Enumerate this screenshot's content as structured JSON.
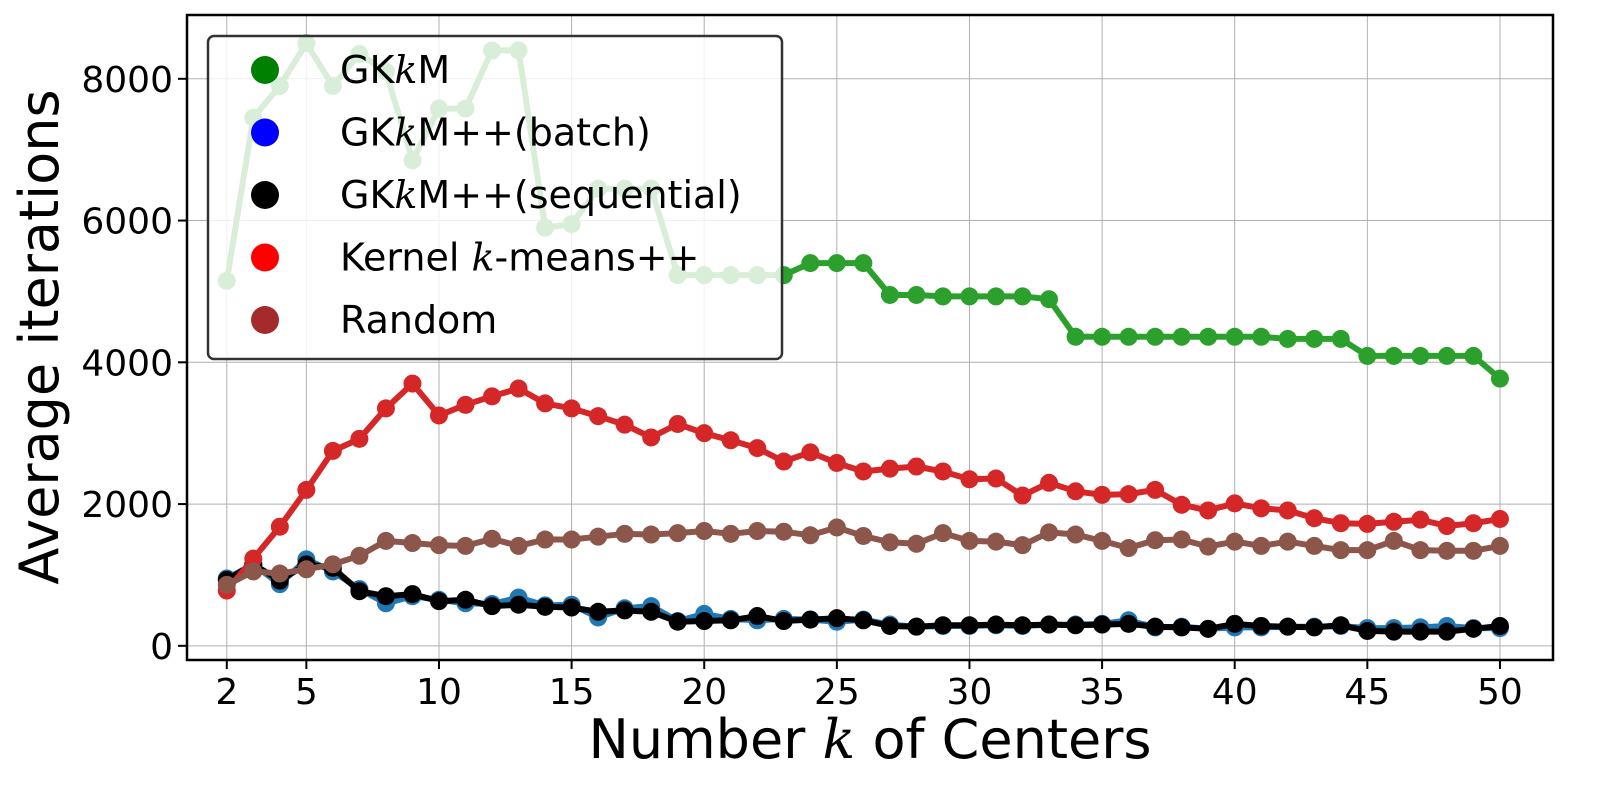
{
  "chart_data": {
    "type": "line",
    "xlabel": "Number k of Centers",
    "ylabel": "Average iterations",
    "xlim": [
      0.5,
      52
    ],
    "ylim": [
      -200,
      8900
    ],
    "xticks": [
      2,
      5,
      10,
      15,
      20,
      25,
      30,
      35,
      40,
      45,
      50
    ],
    "yticks": [
      0,
      2000,
      4000,
      6000,
      8000
    ],
    "grid": true,
    "legend_position": "top-left",
    "x": [
      2,
      3,
      4,
      5,
      6,
      7,
      8,
      9,
      10,
      11,
      12,
      13,
      14,
      15,
      16,
      17,
      18,
      19,
      20,
      21,
      22,
      23,
      24,
      25,
      26,
      27,
      28,
      29,
      30,
      31,
      32,
      33,
      34,
      35,
      36,
      37,
      38,
      39,
      40,
      41,
      42,
      43,
      44,
      45,
      46,
      47,
      48,
      49,
      50
    ],
    "series": [
      {
        "name": "GKkM",
        "color": "#2ca02c",
        "legend_color": "#008000",
        "values": [
          5150,
          7450,
          7900,
          8500,
          7900,
          8350,
          8100,
          6850,
          7580,
          7580,
          8400,
          8400,
          5900,
          5950,
          6450,
          6450,
          6450,
          5230,
          5230,
          5230,
          5230,
          5230,
          5400,
          5400,
          5400,
          4950,
          4950,
          4930,
          4930,
          4930,
          4930,
          4890,
          4360,
          4360,
          4360,
          4360,
          4360,
          4360,
          4360,
          4360,
          4330,
          4330,
          4330,
          4090,
          4090,
          4090,
          4090,
          4090,
          3770
        ]
      },
      {
        "name": "GKkM++(batch)",
        "color": "#1f77b4",
        "legend_color": "#0000ff",
        "values": [
          950,
          1150,
          870,
          1220,
          1050,
          800,
          600,
          700,
          650,
          600,
          590,
          680,
          570,
          580,
          400,
          530,
          560,
          350,
          450,
          380,
          360,
          380,
          370,
          340,
          370,
          300,
          270,
          280,
          280,
          290,
          280,
          300,
          300,
          310,
          360,
          260,
          270,
          240,
          260,
          260,
          270,
          270,
          280,
          250,
          250,
          260,
          280,
          250,
          250
        ]
      },
      {
        "name": "GKkM++(sequential)",
        "color": "#000000",
        "legend_color": "#000000",
        "values": [
          930,
          1150,
          920,
          1150,
          1100,
          770,
          700,
          730,
          630,
          650,
          560,
          580,
          550,
          540,
          480,
          500,
          480,
          340,
          350,
          360,
          420,
          350,
          370,
          390,
          360,
          280,
          270,
          290,
          290,
          300,
          290,
          300,
          290,
          300,
          310,
          270,
          260,
          240,
          310,
          280,
          270,
          260,
          290,
          210,
          200,
          200,
          200,
          240,
          280
        ]
      },
      {
        "name": "Kernel k-means++",
        "color": "#d62728",
        "legend_color": "#ff0000",
        "values": [
          780,
          1230,
          1680,
          2200,
          2750,
          2920,
          3350,
          3700,
          3250,
          3400,
          3520,
          3630,
          3420,
          3350,
          3240,
          3120,
          2940,
          3130,
          3000,
          2900,
          2790,
          2600,
          2730,
          2580,
          2460,
          2500,
          2530,
          2460,
          2350,
          2360,
          2120,
          2300,
          2180,
          2130,
          2140,
          2200,
          1990,
          1910,
          2010,
          1940,
          1910,
          1800,
          1730,
          1720,
          1750,
          1780,
          1690,
          1730,
          1790
        ]
      },
      {
        "name": "Random",
        "color": "#8c564b",
        "legend_color": "#a52a2a",
        "values": [
          860,
          1050,
          1020,
          1080,
          1150,
          1270,
          1480,
          1450,
          1420,
          1410,
          1510,
          1410,
          1500,
          1500,
          1540,
          1580,
          1570,
          1590,
          1620,
          1580,
          1620,
          1610,
          1560,
          1670,
          1550,
          1460,
          1440,
          1590,
          1480,
          1470,
          1420,
          1600,
          1570,
          1480,
          1380,
          1490,
          1500,
          1400,
          1470,
          1410,
          1470,
          1410,
          1350,
          1350,
          1480,
          1350,
          1340,
          1340,
          1410
        ]
      }
    ]
  }
}
